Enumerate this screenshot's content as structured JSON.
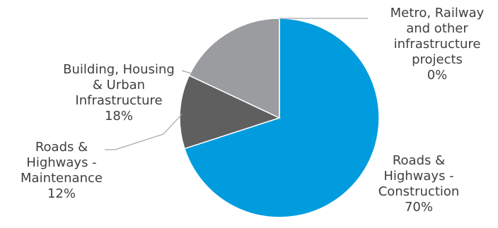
{
  "chart_data": {
    "type": "pie",
    "title": "",
    "slices": [
      {
        "label_lines": [
          "Roads &",
          "Highways -",
          "Construction"
        ],
        "percent_label": "70%",
        "value": 70,
        "color": "#009cde"
      },
      {
        "label_lines": [
          "Roads &",
          "Highways -",
          "Maintenance"
        ],
        "percent_label": "12%",
        "value": 12,
        "color": "#5f5f5f"
      },
      {
        "label_lines": [
          "Building, Housing",
          "& Urban",
          "Infrastructure"
        ],
        "percent_label": "18%",
        "value": 18,
        "color": "#9a9ca0"
      },
      {
        "label_lines": [
          "Metro, Railway",
          "and other",
          "infrastructure",
          "projects"
        ],
        "percent_label": "0%",
        "value": 0,
        "color": "#d0d0d0"
      }
    ],
    "start_position": "top",
    "direction": "clockwise",
    "legend": "none",
    "label_color": "#404040",
    "leader_line_color": "#a6a6a6"
  }
}
